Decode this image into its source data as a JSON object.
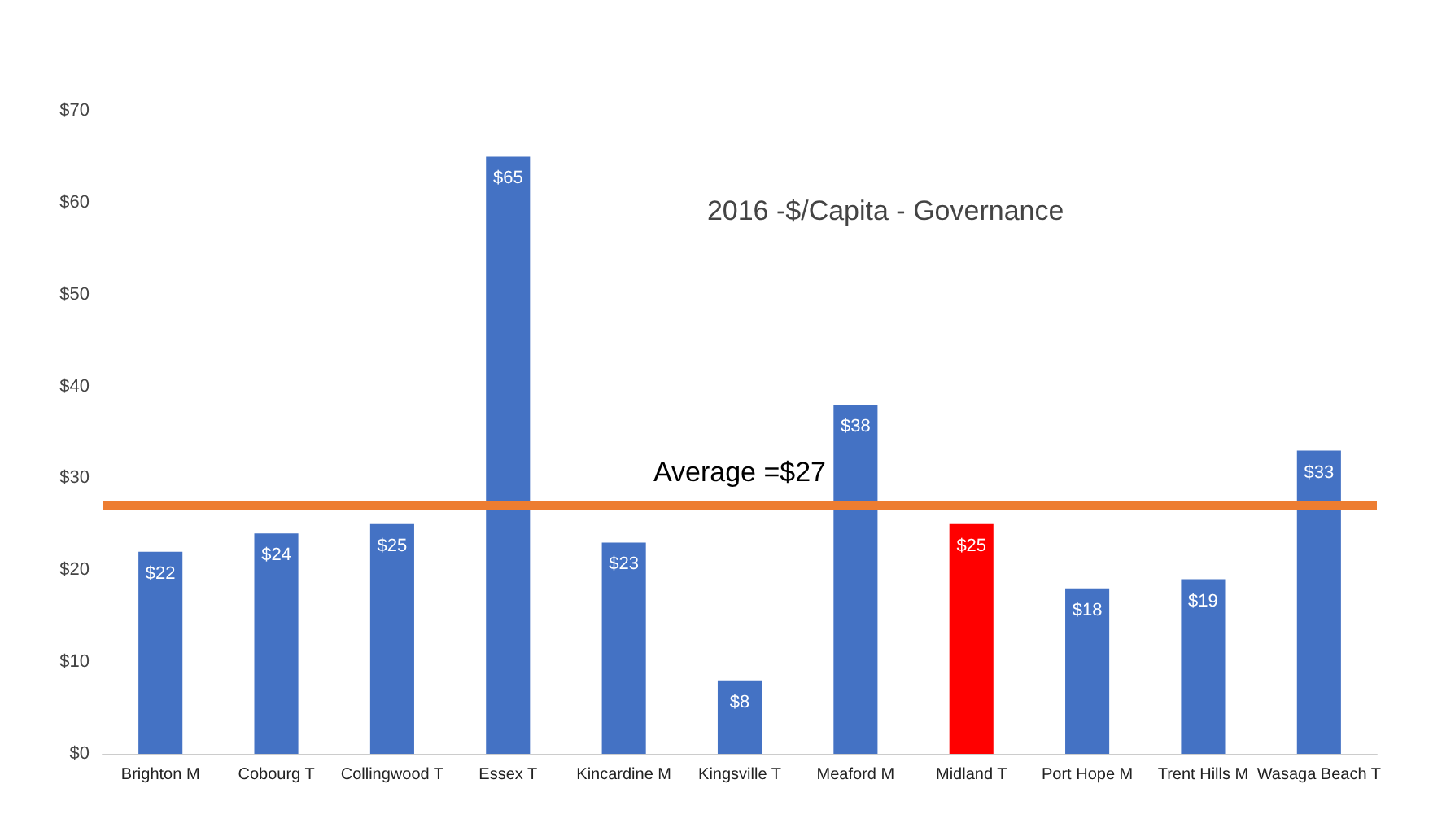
{
  "chart_data": {
    "type": "bar",
    "title": "2016 -$/Capita - Governance",
    "categories": [
      "Brighton M",
      "Cobourg T",
      "Collingwood T",
      "Essex T",
      "Kincardine M",
      "Kingsville T",
      "Meaford M",
      "Midland T",
      "Port Hope M",
      "Trent Hills M",
      "Wasaga Beach T"
    ],
    "values": [
      22,
      24,
      25,
      65,
      23,
      8,
      38,
      25,
      18,
      19,
      33
    ],
    "colors": [
      "#4472c4",
      "#4472c4",
      "#4472c4",
      "#4472c4",
      "#4472c4",
      "#4472c4",
      "#4472c4",
      "#ff0000",
      "#4472c4",
      "#4472c4",
      "#4472c4"
    ],
    "value_labels": [
      "$22",
      "$24",
      "$25",
      "$65",
      "$23",
      "$8",
      "$38",
      "$25",
      "$18",
      "$19",
      "$33"
    ],
    "ylim": [
      0,
      70
    ],
    "yticks": [
      {
        "value": 0,
        "label": "$0"
      },
      {
        "value": 10,
        "label": "$10"
      },
      {
        "value": 20,
        "label": "$20"
      },
      {
        "value": 30,
        "label": "$30"
      },
      {
        "value": 40,
        "label": "$40"
      },
      {
        "value": 50,
        "label": "$50"
      },
      {
        "value": 60,
        "label": "$60"
      },
      {
        "value": 70,
        "label": "$70"
      }
    ],
    "ref_lines": [
      {
        "axis": "y",
        "value": 27,
        "label": "Average =$27",
        "color": "#ed7d31"
      }
    ],
    "grid": false
  }
}
